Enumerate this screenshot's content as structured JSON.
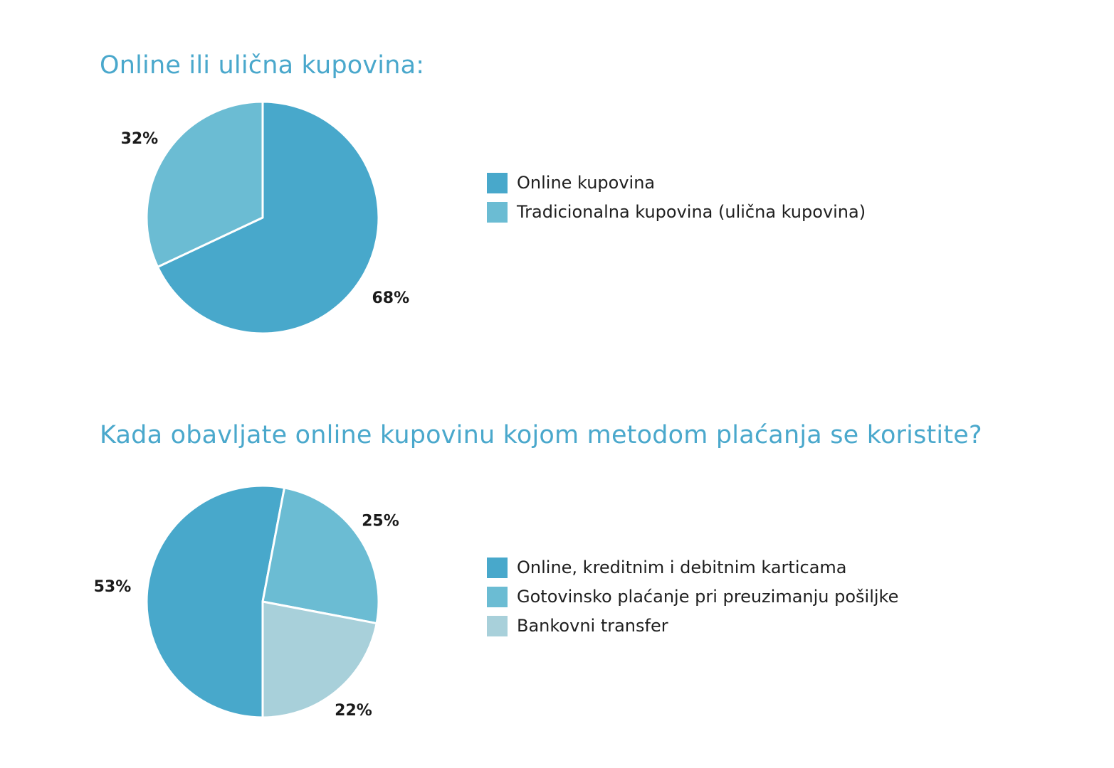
{
  "colors": {
    "title": "#4aa8cc",
    "series_dark": "#48a8cb",
    "series_mid": "#6bbcd3",
    "series_light": "#a8d0da",
    "label_text": "#1a1a1a"
  },
  "chart_data": [
    {
      "type": "pie",
      "title": "Online ili ulična kupovina:",
      "start_angle_deg": 0,
      "direction": "clockwise",
      "legend_position": "right",
      "slices": [
        {
          "label": "Online kupovina",
          "value": 68,
          "value_label": "68%",
          "color": "#48a8cb"
        },
        {
          "label": "Tradicionalna kupovina (ulična kupovina)",
          "value": 32,
          "value_label": "32%",
          "color": "#6bbcd3"
        }
      ]
    },
    {
      "type": "pie",
      "title": "Kada obavljate online kupovinu kojom metodom plaćanja se koristite?",
      "start_angle_deg": 180,
      "direction": "clockwise",
      "legend_position": "right",
      "slices": [
        {
          "label": "Online, kreditnim i debitnim karticama",
          "value": 53,
          "value_label": "53%",
          "color": "#48a8cb"
        },
        {
          "label": "Gotovinsko plaćanje pri preuzimanju pošiljke",
          "value": 25,
          "value_label": "25%",
          "color": "#6bbcd3"
        },
        {
          "label": "Bankovni transfer",
          "value": 22,
          "value_label": "22%",
          "color": "#a8d0da"
        }
      ]
    }
  ]
}
